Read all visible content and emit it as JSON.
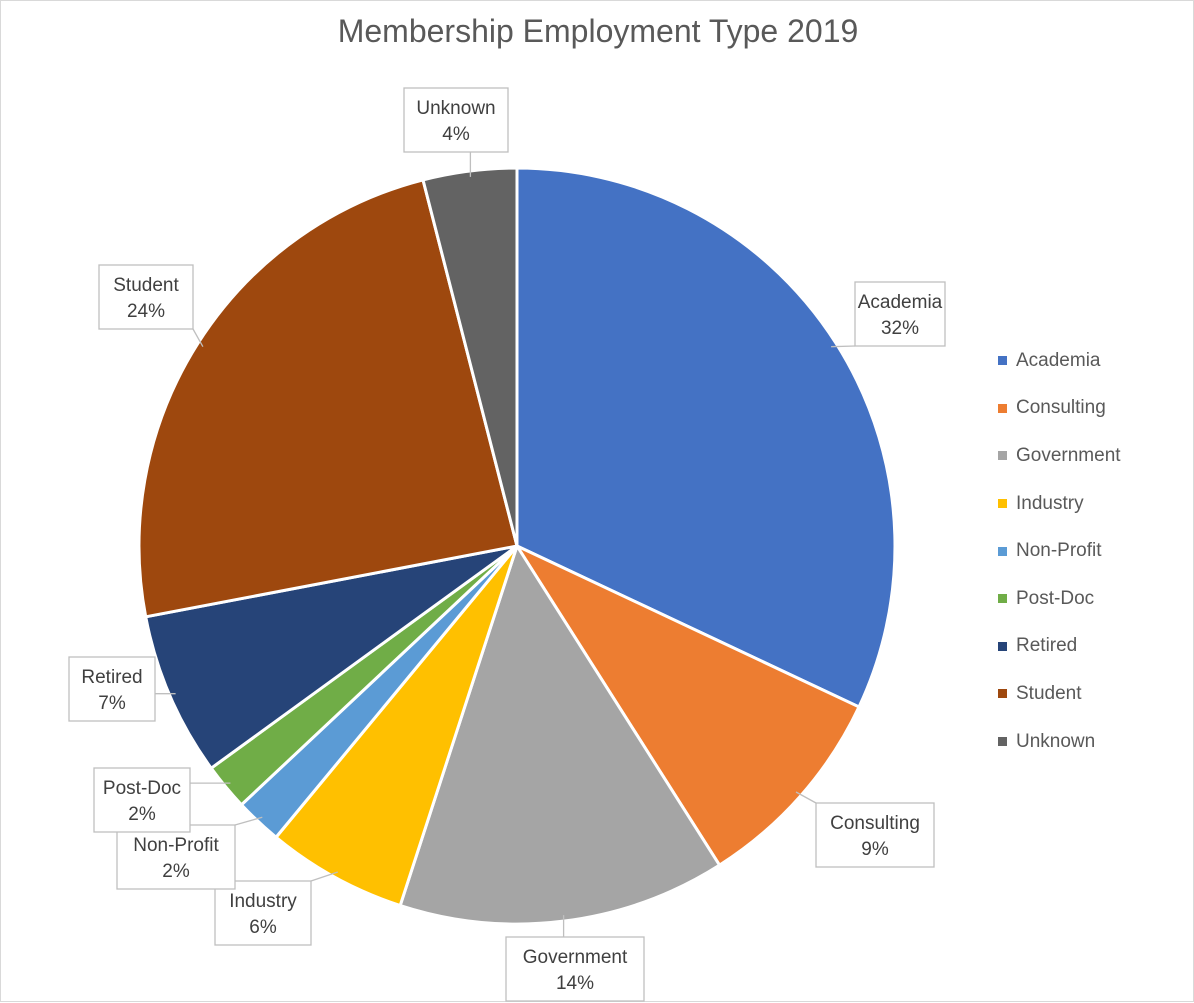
{
  "chart_data": {
    "type": "pie",
    "title": "Membership Employment Type 2019",
    "categories": [
      "Academia",
      "Consulting",
      "Government",
      "Industry",
      "Non-Profit",
      "Post-Doc",
      "Retired",
      "Student",
      "Unknown"
    ],
    "values": [
      32,
      9,
      14,
      6,
      2,
      2,
      7,
      24,
      4
    ],
    "value_labels": [
      "32%",
      "9%",
      "14%",
      "6%",
      "2%",
      "2%",
      "7%",
      "24%",
      "4%"
    ],
    "colors": [
      "#4472C4",
      "#ED7D31",
      "#A5A5A5",
      "#FFC000",
      "#5B9BD5",
      "#70AD47",
      "#264478",
      "#9E480E",
      "#636363"
    ],
    "start_angle_deg": 0,
    "direction": "clockwise",
    "legend_position": "right",
    "data_labels": "callouts with category name and percentage"
  }
}
